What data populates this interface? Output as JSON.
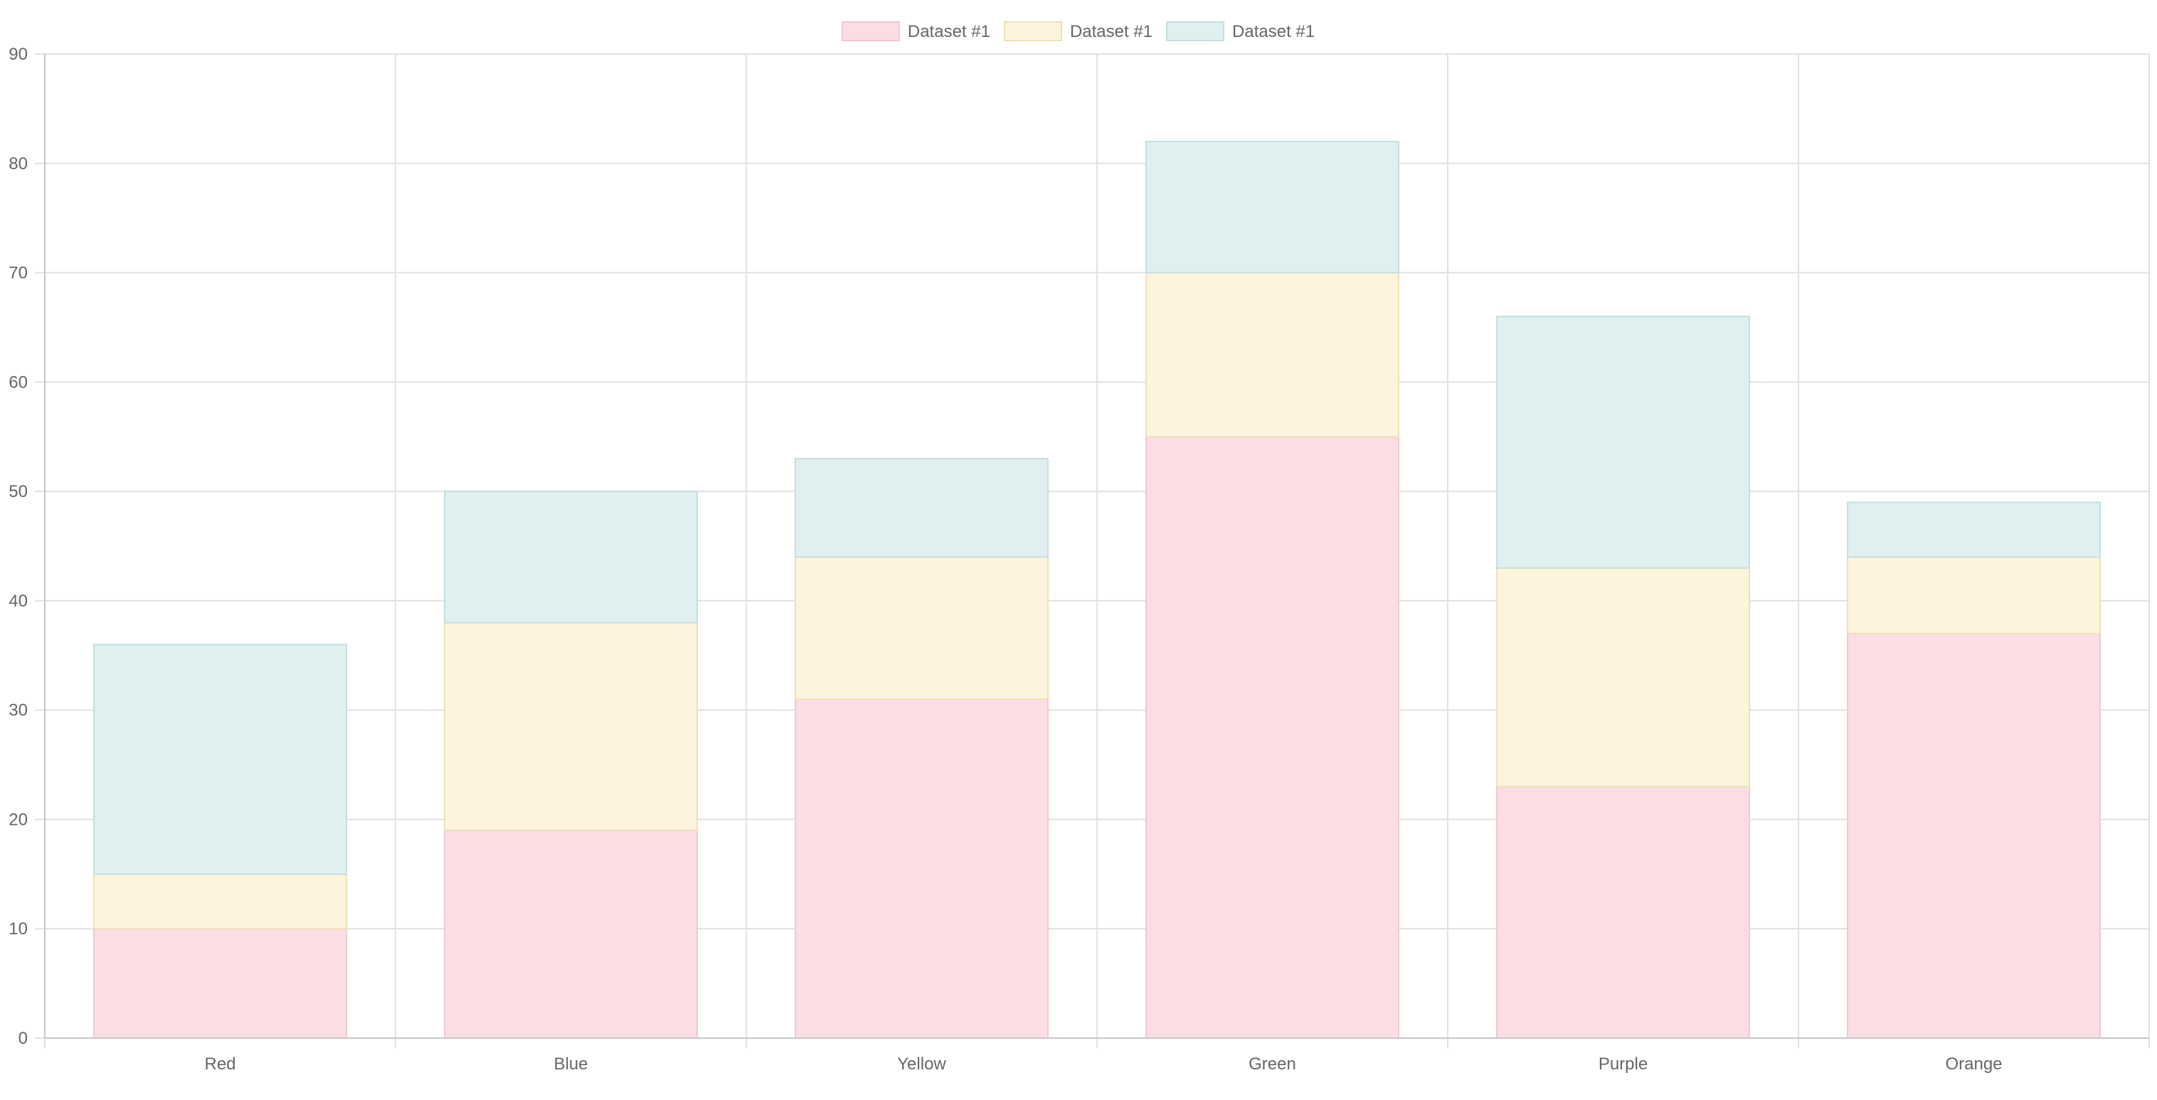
{
  "chart_data": {
    "type": "bar",
    "stacked": true,
    "categories": [
      "Red",
      "Blue",
      "Yellow",
      "Green",
      "Purple",
      "Orange"
    ],
    "series": [
      {
        "name": "Dataset #1",
        "values": [
          10,
          19,
          31,
          55,
          23,
          37
        ],
        "fill": "#fbdee3",
        "stroke": "#f2c7cf"
      },
      {
        "name": "Dataset #1",
        "values": [
          5,
          19,
          13,
          15,
          20,
          7
        ],
        "fill": "#fcf4dc",
        "stroke": "#efe0b7"
      },
      {
        "name": "Dataset #1",
        "values": [
          21,
          12,
          9,
          12,
          23,
          5
        ],
        "fill": "#e0f0f0",
        "stroke": "#c4dfe0"
      }
    ],
    "ylim": [
      0,
      90
    ],
    "yticks": [
      0,
      10,
      20,
      30,
      40,
      50,
      60,
      70,
      80,
      90
    ],
    "grid": true,
    "legend": "top-center"
  }
}
